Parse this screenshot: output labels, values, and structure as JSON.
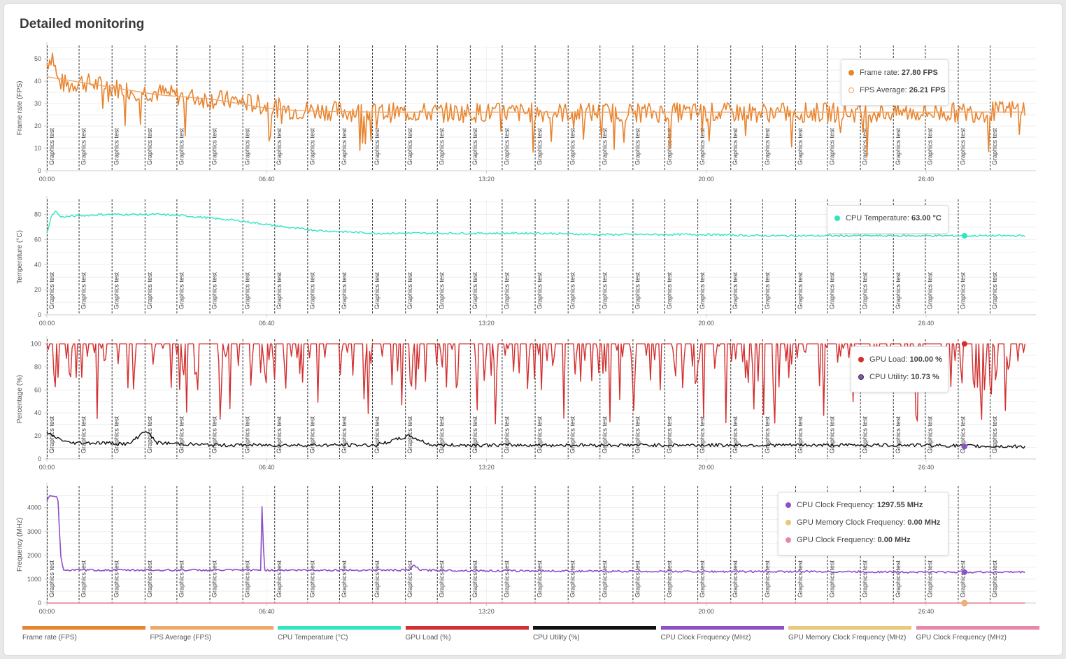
{
  "page": {
    "title": "Detailed monitoring"
  },
  "colors": {
    "frame_rate": "#e8832e",
    "fps_average": "#f0a868",
    "cpu_temperature": "#2ee6c0",
    "gpu_load": "#d32f2f",
    "cpu_utility": "#111111",
    "cpu_clock": "#8e4fc8",
    "gpu_mem_clock": "#e8c87a",
    "gpu_clock": "#e888a8"
  },
  "x_axis": {
    "tick_labels": [
      "00:00",
      "06:40",
      "13:20",
      "20:00",
      "26:40"
    ],
    "tick_seconds": [
      0,
      400,
      800,
      1200,
      1600
    ],
    "range_seconds": [
      0,
      1800
    ]
  },
  "markers": {
    "label": "Graphics test",
    "times_seconds": [
      0,
      58,
      118,
      178,
      236,
      296,
      356,
      414,
      474,
      532,
      592,
      652,
      710,
      770,
      828,
      888,
      948,
      1006,
      1066,
      1124,
      1184,
      1244,
      1302,
      1362,
      1420,
      1480,
      1540,
      1598,
      1658,
      1716
    ]
  },
  "tooltips": {
    "fps": [
      {
        "label": "Frame rate",
        "value": "27.80 FPS",
        "dot": "frame_rate",
        "hollow": false
      },
      {
        "label": "FPS Average",
        "value": "26.21 FPS",
        "dot": "fps_average",
        "hollow": true
      }
    ],
    "temp": [
      {
        "label": "CPU Temperature",
        "value": "63.00 °C",
        "dot": "cpu_temperature",
        "hollow": false
      }
    ],
    "pct": [
      {
        "label": "GPU Load",
        "value": "100.00 %",
        "dot": "gpu_load",
        "hollow": false
      },
      {
        "label": "CPU Utility",
        "value": "10.73 %",
        "dot": "cpu_clock",
        "hollow": false
      }
    ],
    "freq": [
      {
        "label": "CPU Clock Frequency",
        "value": "1297.55 MHz",
        "dot": "cpu_clock",
        "hollow": false
      },
      {
        "label": "GPU Memory Clock Frequency",
        "value": "0.00 MHz",
        "dot": "gpu_mem_clock",
        "hollow": false
      },
      {
        "label": "GPU Clock Frequency",
        "value": "0.00 MHz",
        "dot": "gpu_clock",
        "hollow": false
      }
    ]
  },
  "legend": [
    {
      "label": "Frame rate (FPS)",
      "color": "frame_rate"
    },
    {
      "label": "FPS Average (FPS)",
      "color": "fps_average"
    },
    {
      "label": "CPU Temperature (°C)",
      "color": "cpu_temperature"
    },
    {
      "label": "GPU Load (%)",
      "color": "gpu_load"
    },
    {
      "label": "CPU Utility (%)",
      "color": "cpu_utility"
    },
    {
      "label": "CPU Clock Frequency (MHz)",
      "color": "cpu_clock"
    },
    {
      "label": "GPU Memory Clock Frequency (MHz)",
      "color": "gpu_mem_clock"
    },
    {
      "label": "GPU Clock Frequency (MHz)",
      "color": "gpu_clock"
    }
  ],
  "chart_data": [
    {
      "type": "line",
      "id": "fps",
      "ylabel": "Frame rate (FPS)",
      "yticks": [
        0,
        10,
        20,
        30,
        40,
        50
      ],
      "ylim": [
        0,
        56
      ],
      "series": [
        {
          "name": "Frame rate",
          "color": "frame_rate",
          "points": [
            [
              0,
              48
            ],
            [
              10,
              52
            ],
            [
              20,
              40
            ],
            [
              40,
              38
            ],
            [
              60,
              40
            ],
            [
              100,
              38
            ],
            [
              150,
              36
            ],
            [
              200,
              35
            ],
            [
              250,
              33
            ],
            [
              300,
              32
            ],
            [
              350,
              31
            ],
            [
              400,
              29
            ],
            [
              450,
              27
            ],
            [
              500,
              27
            ],
            [
              600,
              26
            ],
            [
              700,
              26
            ],
            [
              800,
              26
            ],
            [
              900,
              26
            ],
            [
              1000,
              26
            ],
            [
              1100,
              26
            ],
            [
              1200,
              26
            ],
            [
              1300,
              26
            ],
            [
              1400,
              26
            ],
            [
              1500,
              26
            ],
            [
              1600,
              26
            ],
            [
              1700,
              26
            ],
            [
              1780,
              27.8
            ]
          ]
        },
        {
          "name": "FPS Average",
          "color": "fps_average",
          "points": [
            [
              0,
              42
            ],
            [
              50,
              40
            ],
            [
              100,
              38
            ],
            [
              150,
              36
            ],
            [
              200,
              34
            ],
            [
              250,
              33
            ],
            [
              300,
              32
            ],
            [
              350,
              30
            ],
            [
              400,
              28
            ],
            [
              450,
              27
            ],
            [
              500,
              26.5
            ],
            [
              600,
              26.2
            ],
            [
              800,
              26.2
            ],
            [
              1000,
              26.2
            ],
            [
              1200,
              26.2
            ],
            [
              1400,
              26.2
            ],
            [
              1600,
              26.2
            ],
            [
              1780,
              26.21
            ]
          ]
        }
      ],
      "grid": true
    },
    {
      "type": "line",
      "id": "temp",
      "ylabel": "Temperature (°C)",
      "yticks": [
        0,
        20,
        40,
        60,
        80
      ],
      "ylim": [
        0,
        92
      ],
      "series": [
        {
          "name": "CPU Temperature",
          "color": "cpu_temperature",
          "points": [
            [
              0,
              65
            ],
            [
              8,
              78
            ],
            [
              15,
              83
            ],
            [
              25,
              78
            ],
            [
              60,
              79
            ],
            [
              100,
              80
            ],
            [
              150,
              80
            ],
            [
              200,
              80
            ],
            [
              250,
              79
            ],
            [
              300,
              77
            ],
            [
              350,
              75
            ],
            [
              400,
              72
            ],
            [
              450,
              69
            ],
            [
              500,
              67
            ],
            [
              550,
              66
            ],
            [
              600,
              65
            ],
            [
              700,
              65
            ],
            [
              800,
              65
            ],
            [
              900,
              65
            ],
            [
              1000,
              64
            ],
            [
              1100,
              64
            ],
            [
              1200,
              64
            ],
            [
              1300,
              63
            ],
            [
              1400,
              63
            ],
            [
              1500,
              63
            ],
            [
              1600,
              63
            ],
            [
              1700,
              63
            ],
            [
              1780,
              63
            ]
          ]
        }
      ],
      "grid": true
    },
    {
      "type": "line",
      "id": "pct",
      "ylabel": "Percentage (%)",
      "yticks": [
        0,
        20,
        40,
        60,
        80,
        100
      ],
      "ylim": [
        0,
        104
      ],
      "series": [
        {
          "name": "GPU Load",
          "color": "gpu_load",
          "points": [
            [
              0,
              100
            ],
            [
              1780,
              100
            ]
          ]
        },
        {
          "name": "CPU Utility",
          "color": "cpu_utility",
          "points": [
            [
              0,
              22
            ],
            [
              20,
              18
            ],
            [
              40,
              14
            ],
            [
              100,
              14
            ],
            [
              150,
              13
            ],
            [
              180,
              25
            ],
            [
              200,
              14
            ],
            [
              300,
              12
            ],
            [
              400,
              12
            ],
            [
              500,
              12
            ],
            [
              600,
              12
            ],
            [
              660,
              20
            ],
            [
              700,
              12
            ],
            [
              800,
              12
            ],
            [
              900,
              12
            ],
            [
              1000,
              12
            ],
            [
              1100,
              12
            ],
            [
              1200,
              12
            ],
            [
              1300,
              12
            ],
            [
              1400,
              12
            ],
            [
              1500,
              12
            ],
            [
              1600,
              12
            ],
            [
              1700,
              11
            ],
            [
              1780,
              10.73
            ]
          ]
        }
      ],
      "grid": true
    },
    {
      "type": "line",
      "id": "freq",
      "ylabel": "Frequency (MHz)",
      "yticks": [
        0,
        1000,
        2000,
        3000,
        4000
      ],
      "ylim": [
        0,
        4900
      ],
      "series": [
        {
          "name": "CPU Clock Frequency",
          "color": "cpu_clock",
          "points": [
            [
              0,
              4300
            ],
            [
              5,
              4500
            ],
            [
              20,
              4450
            ],
            [
              25,
              2000
            ],
            [
              30,
              1380
            ],
            [
              100,
              1380
            ],
            [
              200,
              1380
            ],
            [
              300,
              1380
            ],
            [
              390,
              1380
            ],
            [
              392,
              4700
            ],
            [
              395,
              1380
            ],
            [
              500,
              1380
            ],
            [
              660,
              1380
            ],
            [
              668,
              1580
            ],
            [
              680,
              1380
            ],
            [
              800,
              1350
            ],
            [
              900,
              1350
            ],
            [
              1000,
              1330
            ],
            [
              1100,
              1330
            ],
            [
              1200,
              1320
            ],
            [
              1300,
              1320
            ],
            [
              1400,
              1320
            ],
            [
              1500,
              1310
            ],
            [
              1600,
              1300
            ],
            [
              1700,
              1300
            ],
            [
              1780,
              1297.55
            ]
          ]
        },
        {
          "name": "GPU Memory Clock Frequency",
          "color": "gpu_mem_clock",
          "points": [
            [
              0,
              0
            ],
            [
              1780,
              0
            ]
          ]
        },
        {
          "name": "GPU Clock Frequency",
          "color": "gpu_clock",
          "points": [
            [
              0,
              0
            ],
            [
              1780,
              0
            ]
          ]
        }
      ],
      "grid": true
    }
  ]
}
